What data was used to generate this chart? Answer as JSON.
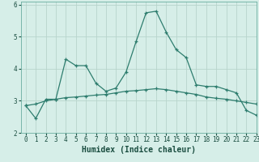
{
  "title": "",
  "xlabel": "Humidex (Indice chaleur)",
  "ylabel": "",
  "background_color": "#d6eee8",
  "grid_color": "#b8d4cc",
  "line_color": "#2e7d6e",
  "xlim": [
    -0.5,
    23
  ],
  "ylim": [
    2.0,
    6.1
  ],
  "yticks": [
    2,
    3,
    4,
    5,
    6
  ],
  "xticks": [
    0,
    1,
    2,
    3,
    4,
    5,
    6,
    7,
    8,
    9,
    10,
    11,
    12,
    13,
    14,
    15,
    16,
    17,
    18,
    19,
    20,
    21,
    22,
    23
  ],
  "curve1_x": [
    0,
    1,
    2,
    3,
    4,
    5,
    6,
    7,
    8,
    9,
    10,
    11,
    12,
    13,
    14,
    15,
    16,
    17,
    18,
    19,
    20,
    21,
    22,
    23
  ],
  "curve1_y": [
    2.85,
    2.45,
    3.05,
    3.05,
    4.3,
    4.1,
    4.1,
    3.55,
    3.3,
    3.4,
    3.9,
    4.85,
    5.75,
    5.8,
    5.15,
    4.6,
    4.35,
    3.5,
    3.45,
    3.45,
    3.35,
    3.25,
    2.7,
    2.55
  ],
  "curve2_x": [
    0,
    1,
    2,
    3,
    4,
    5,
    6,
    7,
    8,
    9,
    10,
    11,
    12,
    13,
    14,
    15,
    16,
    17,
    18,
    19,
    20,
    21,
    22,
    23
  ],
  "curve2_y": [
    2.85,
    2.9,
    3.0,
    3.05,
    3.1,
    3.12,
    3.15,
    3.18,
    3.2,
    3.25,
    3.3,
    3.32,
    3.35,
    3.38,
    3.35,
    3.3,
    3.25,
    3.2,
    3.12,
    3.08,
    3.05,
    3.0,
    2.95,
    2.9
  ],
  "xlabel_fontsize": 7,
  "tick_fontsize": 5.5
}
